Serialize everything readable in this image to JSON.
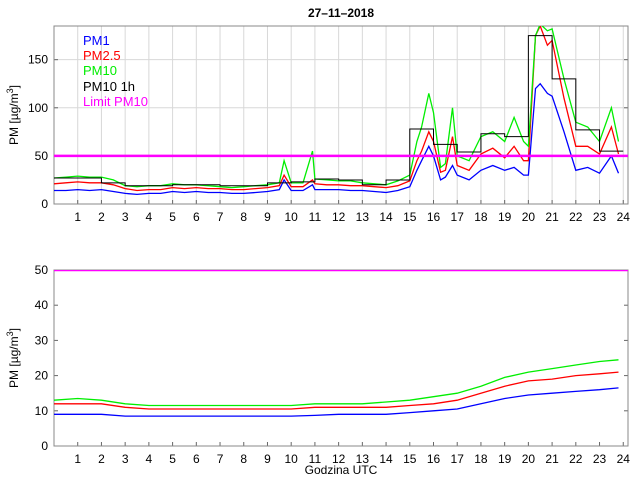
{
  "title": "27–11–2018",
  "chart_data": [
    {
      "type": "line",
      "title": "27–11–2018",
      "xlabel": "",
      "ylabel_main": "PM [µg/m",
      "ylabel_sup": "3",
      "ylabel_end": "]",
      "xlim": [
        0,
        24.2
      ],
      "ylim": [
        0,
        185
      ],
      "xticks": [
        "1",
        "2",
        "3",
        "4",
        "5",
        "6",
        "7",
        "8",
        "9",
        "10",
        "11",
        "12",
        "13",
        "14",
        "15",
        "16",
        "17",
        "18",
        "19",
        "20",
        "21",
        "22",
        "23",
        "24"
      ],
      "yticks": [
        "0",
        "50",
        "100",
        "150"
      ],
      "grid": true,
      "legend_position": "top-left",
      "x": [
        0,
        0.5,
        1,
        1.5,
        2,
        2.5,
        3,
        3.5,
        4,
        4.5,
        5,
        5.5,
        6,
        6.5,
        7,
        7.5,
        8,
        8.5,
        9,
        9.5,
        9.7,
        10,
        10.5,
        10.9,
        11,
        11.5,
        12,
        12.5,
        13,
        13.5,
        14,
        14.5,
        15,
        15.3,
        15.5,
        15.8,
        16,
        16.3,
        16.5,
        16.8,
        17,
        17.5,
        18,
        18.5,
        19,
        19.4,
        19.8,
        20,
        20.3,
        20.5,
        20.8,
        21,
        21.5,
        22,
        22.5,
        23,
        23.5,
        23.8
      ],
      "series": [
        {
          "name": "PM1",
          "color": "#0000ff",
          "values": [
            14,
            14,
            15,
            14,
            15,
            13,
            11,
            10,
            11,
            11,
            13,
            12,
            13,
            12,
            12,
            11,
            11,
            12,
            13,
            15,
            25,
            14,
            14,
            20,
            15,
            15,
            15,
            14,
            14,
            13,
            12,
            14,
            18,
            35,
            45,
            60,
            50,
            25,
            28,
            40,
            30,
            25,
            35,
            40,
            35,
            38,
            30,
            30,
            120,
            125,
            115,
            112,
            75,
            35,
            38,
            32,
            50,
            32
          ]
        },
        {
          "name": "PM2.5",
          "color": "#ff0000",
          "values": [
            21,
            22,
            23,
            22,
            22,
            20,
            16,
            14,
            15,
            15,
            17,
            16,
            17,
            16,
            16,
            15,
            15,
            16,
            17,
            19,
            30,
            18,
            18,
            25,
            21,
            20,
            20,
            19,
            19,
            18,
            17,
            19,
            24,
            45,
            55,
            75,
            65,
            33,
            35,
            70,
            40,
            35,
            52,
            58,
            48,
            60,
            45,
            45,
            175,
            185,
            165,
            170,
            110,
            60,
            60,
            52,
            80,
            52
          ]
        },
        {
          "name": "PM10",
          "color": "#00ee00",
          "values": [
            27,
            28,
            29,
            28,
            28,
            25,
            19,
            18,
            19,
            19,
            21,
            20,
            20,
            19,
            18,
            17,
            18,
            19,
            20,
            22,
            45,
            22,
            22,
            55,
            26,
            25,
            24,
            24,
            22,
            21,
            20,
            24,
            30,
            65,
            80,
            115,
            95,
            38,
            42,
            100,
            50,
            45,
            70,
            75,
            65,
            90,
            65,
            60,
            175,
            187,
            180,
            182,
            130,
            85,
            80,
            65,
            100,
            65
          ]
        },
        {
          "name": "PM10 1h",
          "color": "#000000",
          "step_values": [
            27,
            27,
            22,
            19,
            19,
            20,
            20,
            19,
            19,
            22,
            23,
            26,
            25,
            20,
            25,
            78,
            62,
            54,
            73,
            70,
            175,
            130,
            77,
            55
          ]
        },
        {
          "name": "Limit PM10",
          "color": "#ff00ff",
          "constant": 50
        }
      ]
    },
    {
      "type": "line",
      "xlabel": "Godzina UTC",
      "ylabel_main": "PM [µg/m",
      "ylabel_sup": "3",
      "ylabel_end": "]",
      "xlim": [
        0,
        24.2
      ],
      "ylim": [
        0,
        50
      ],
      "xticks": [
        "1",
        "2",
        "3",
        "4",
        "5",
        "6",
        "7",
        "8",
        "9",
        "10",
        "11",
        "12",
        "13",
        "14",
        "15",
        "16",
        "17",
        "18",
        "19",
        "20",
        "21",
        "22",
        "23",
        "24"
      ],
      "yticks": [
        "0",
        "10",
        "20",
        "30",
        "40",
        "50"
      ],
      "grid": false,
      "x": [
        0,
        1,
        2,
        3,
        4,
        5,
        6,
        7,
        8,
        9,
        10,
        11,
        12,
        13,
        14,
        15,
        16,
        17,
        18,
        19,
        20,
        21,
        22,
        23,
        23.8
      ],
      "series": [
        {
          "name": "PM1",
          "color": "#0000ff",
          "values": [
            9,
            9,
            9,
            8.5,
            8.5,
            8.5,
            8.5,
            8.5,
            8.5,
            8.5,
            8.5,
            8.7,
            9,
            9,
            9,
            9.5,
            10,
            10.5,
            12,
            13.5,
            14.5,
            15,
            15.5,
            16,
            16.5
          ]
        },
        {
          "name": "PM2.5",
          "color": "#ff0000",
          "values": [
            12,
            12,
            12,
            11,
            10.5,
            10.5,
            10.5,
            10.5,
            10.5,
            10.5,
            10.5,
            11,
            11,
            11,
            11,
            11.5,
            12,
            13,
            15,
            17,
            18.5,
            19,
            20,
            20.5,
            21
          ]
        },
        {
          "name": "PM10",
          "color": "#00ee00",
          "values": [
            13,
            13.5,
            13,
            12,
            11.5,
            11.5,
            11.5,
            11.5,
            11.5,
            11.5,
            11.5,
            12,
            12,
            12,
            12.5,
            13,
            14,
            15,
            17,
            19.5,
            21,
            22,
            23,
            24,
            24.5
          ]
        },
        {
          "name": "Limit PM10",
          "color": "#ff00ff",
          "constant": 50
        }
      ]
    }
  ]
}
